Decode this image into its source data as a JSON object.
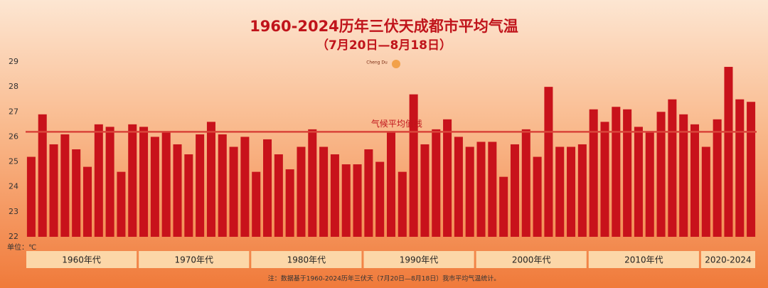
{
  "chart_data": {
    "type": "bar",
    "title": "1960-2024历年三伏天成都市平均气温",
    "subtitle": "（7月20日—8月18日）",
    "logo": "Cheng Du",
    "unit_label": "单位：℃",
    "note": "注：数据基于1960-2024历年三伏天（7月20日—8月18日）我市平均气温统计。",
    "color": "#c8121b",
    "grid": false,
    "ylim": [
      22,
      29
    ],
    "yticks": [
      22,
      23,
      24,
      25,
      26,
      27,
      28,
      29
    ],
    "reference_line": {
      "value": 26.2,
      "label": "气候平均值线",
      "color": "#d9443a"
    },
    "category_groups": [
      "1960年代",
      "1970年代",
      "1980年代",
      "1990年代",
      "2000年代",
      "2010年代",
      "2020-2024"
    ],
    "categories": [
      null,
      null,
      null,
      null,
      null,
      null,
      null,
      null,
      null,
      null,
      null,
      null,
      null,
      null,
      null,
      null,
      null,
      null,
      null,
      null,
      null,
      null,
      null,
      null,
      null,
      null,
      null,
      null,
      null,
      null,
      null,
      null,
      null,
      null,
      null,
      null,
      null,
      null,
      null,
      null,
      null,
      null,
      null,
      null,
      null,
      null,
      null,
      null,
      null,
      null,
      null,
      null,
      null,
      null,
      null,
      null,
      null,
      null,
      null,
      null,
      null,
      null,
      null,
      null,
      null
    ],
    "values": [
      25.2,
      26.9,
      25.7,
      26.1,
      25.5,
      24.8,
      26.5,
      26.4,
      24.6,
      26.5,
      26.4,
      26.0,
      26.2,
      25.7,
      25.3,
      26.1,
      26.6,
      26.1,
      25.6,
      26.0,
      24.6,
      25.9,
      25.3,
      24.7,
      25.6,
      26.3,
      25.6,
      25.3,
      24.9,
      24.9,
      25.5,
      25.0,
      26.2,
      24.6,
      27.7,
      25.7,
      26.3,
      26.7,
      26.0,
      25.6,
      25.8,
      25.8,
      24.4,
      25.7,
      26.3,
      25.2,
      28.0,
      25.6,
      25.6,
      25.7,
      27.1,
      26.6,
      27.2,
      27.1,
      26.4,
      26.2,
      27.0,
      27.5,
      26.9,
      26.5,
      25.6,
      26.7,
      28.8,
      27.5,
      27.4
    ]
  }
}
